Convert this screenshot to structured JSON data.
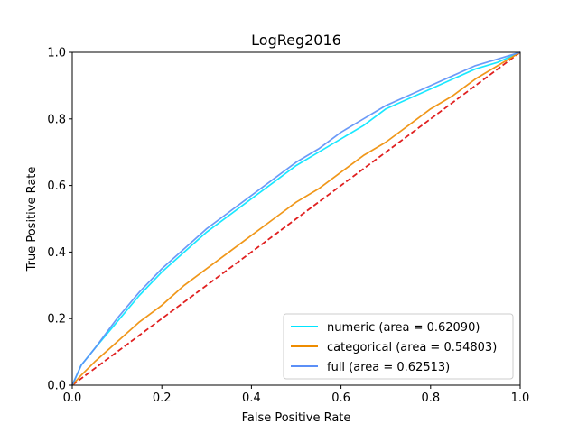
{
  "chart_data": {
    "type": "line",
    "title": "LogReg2016",
    "xlabel": "False Positive Rate",
    "ylabel": "True Positive Rate",
    "xlim": [
      0.0,
      1.0
    ],
    "ylim": [
      0.0,
      1.0
    ],
    "xticks": [
      "0.0",
      "0.2",
      "0.4",
      "0.6",
      "0.8",
      "1.0"
    ],
    "yticks": [
      "0.0",
      "0.2",
      "0.4",
      "0.6",
      "0.8",
      "1.0"
    ],
    "grid": false,
    "legend_position": "lower-right",
    "series": [
      {
        "name": "numeric (area = 0.62090)",
        "color": "#00e5ff",
        "style": "solid",
        "x": [
          0.0,
          0.01,
          0.02,
          0.05,
          0.1,
          0.15,
          0.2,
          0.25,
          0.3,
          0.35,
          0.4,
          0.45,
          0.5,
          0.55,
          0.6,
          0.65,
          0.7,
          0.75,
          0.8,
          0.85,
          0.9,
          0.95,
          1.0
        ],
        "y": [
          0.0,
          0.03,
          0.06,
          0.11,
          0.19,
          0.27,
          0.34,
          0.4,
          0.46,
          0.51,
          0.56,
          0.61,
          0.66,
          0.7,
          0.74,
          0.78,
          0.83,
          0.86,
          0.89,
          0.92,
          0.95,
          0.97,
          1.0
        ]
      },
      {
        "name": "categorical (area = 0.54803)",
        "color": "#ee8c00",
        "style": "solid",
        "x": [
          0.0,
          0.02,
          0.05,
          0.1,
          0.15,
          0.2,
          0.25,
          0.3,
          0.35,
          0.4,
          0.45,
          0.5,
          0.55,
          0.6,
          0.65,
          0.7,
          0.75,
          0.8,
          0.85,
          0.9,
          0.95,
          1.0
        ],
        "y": [
          0.0,
          0.03,
          0.07,
          0.13,
          0.19,
          0.24,
          0.3,
          0.35,
          0.4,
          0.45,
          0.5,
          0.55,
          0.59,
          0.64,
          0.69,
          0.73,
          0.78,
          0.83,
          0.87,
          0.92,
          0.96,
          1.0
        ]
      },
      {
        "name": "full (area = 0.62513)",
        "color": "#5b8ff7",
        "style": "solid",
        "x": [
          0.0,
          0.01,
          0.02,
          0.05,
          0.1,
          0.15,
          0.2,
          0.25,
          0.3,
          0.35,
          0.4,
          0.45,
          0.5,
          0.55,
          0.6,
          0.65,
          0.7,
          0.75,
          0.8,
          0.85,
          0.9,
          0.95,
          1.0
        ],
        "y": [
          0.0,
          0.03,
          0.06,
          0.11,
          0.2,
          0.28,
          0.35,
          0.41,
          0.47,
          0.52,
          0.57,
          0.62,
          0.67,
          0.71,
          0.76,
          0.8,
          0.84,
          0.87,
          0.9,
          0.93,
          0.96,
          0.98,
          1.0
        ]
      }
    ],
    "reference_line": {
      "color": "#e02020",
      "style": "dashed",
      "x": [
        0.0,
        1.0
      ],
      "y": [
        0.0,
        1.0
      ]
    }
  }
}
